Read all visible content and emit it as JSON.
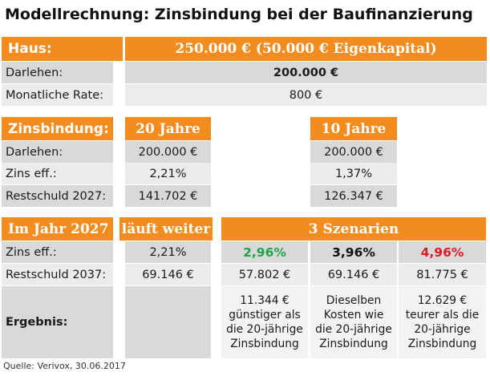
{
  "title": "Modellrechnung: Zinsbindung bei der Baufinanzierung",
  "section_haus": {
    "label": "Haus:",
    "value": "250.000 € (50.000 € Eigenkapital)",
    "rows": [
      {
        "label": "Darlehen:",
        "value": "200.000 €"
      },
      {
        "label": "Monatliche Rate:",
        "value": "800 €"
      }
    ]
  },
  "section_zinsbindung": {
    "label": "Zinsbindung:",
    "col_a": "20 Jahre",
    "col_b": "10 Jahre",
    "rows": [
      {
        "label": "Darlehen:",
        "a": "200.000 €",
        "b": "200.000 €"
      },
      {
        "label": "Zins eff.:",
        "a": "2,21%",
        "b": "1,37%"
      },
      {
        "label": "Restschuld 2027:",
        "a": "141.702 €",
        "b": "126.347 €"
      }
    ]
  },
  "section_2027": {
    "label": "Im Jahr 2027",
    "col_a": "läuft weiter",
    "col_scen": "3 Szenarien",
    "zins": {
      "label": "Zins eff.:",
      "a": "2,21%",
      "s1": "2,96%",
      "s2": "3,96%",
      "s3": "4,96%"
    },
    "rest": {
      "label": "Restschuld 2037:",
      "a": "69.146 €",
      "s1": "57.802 €",
      "s2": "69.146 €",
      "s3": "81.775 €"
    },
    "ergebnis": {
      "label": "Ergebnis:",
      "s1": [
        "11.344 €",
        "günstiger als",
        "die 20-jährige",
        "Zinsbindung"
      ],
      "s2": [
        "Dieselben",
        "Kosten wie",
        "die 20-jährige",
        "Zinsbindung"
      ],
      "s3": [
        "12.629 €",
        "teurer als die",
        "20-jährige",
        "Zinsbindung"
      ]
    }
  },
  "source": "Quelle: Verivox, 30.06.2017",
  "colors": {
    "accent": "#f28c1e",
    "green": "#22a34b",
    "red": "#e01b24"
  }
}
